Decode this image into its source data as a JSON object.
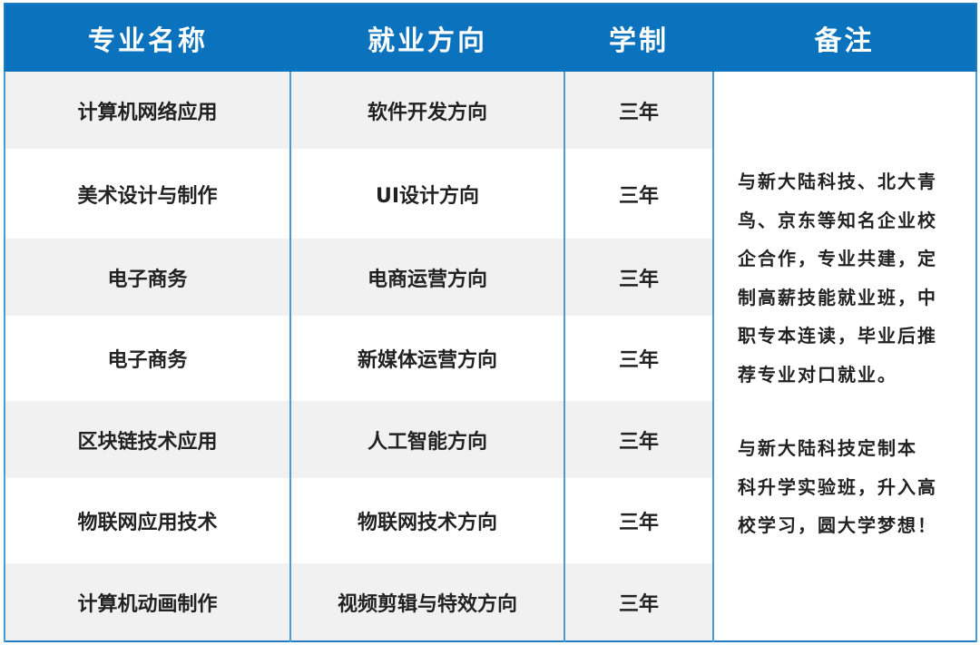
{
  "header": {
    "major": "专业名称",
    "direction": "就业方向",
    "duration": "学制",
    "remark": "备注"
  },
  "rows": [
    {
      "major": "计算机网络应用",
      "direction": "软件开发方向",
      "duration": "三年"
    },
    {
      "major": "美术设计与制作",
      "direction": "UI设计方向",
      "duration": "三年"
    },
    {
      "major": "电子商务",
      "direction": "电商运营方向",
      "duration": "三年"
    },
    {
      "major": "电子商务",
      "direction": "新媒体运营方向",
      "duration": "三年"
    },
    {
      "major": "区块链技术应用",
      "direction": "人工智能方向",
      "duration": "三年"
    },
    {
      "major": "物联网应用技术",
      "direction": "物联网技术方向",
      "duration": "三年"
    },
    {
      "major": "计算机动画制作",
      "direction": "视频剪辑与特效方向",
      "duration": "三年"
    }
  ],
  "remark": {
    "paragraph1": [
      "与新大陆科技、北大青",
      "鸟、京东等知名企业校",
      "企合作，专业共建，定",
      "制高薪技能就业班，中",
      "职专本连读，毕业后推",
      "荐专业对口就业。"
    ],
    "paragraph2": [
      "与新大陆科技定制本",
      "科升学实验班，升入高",
      "校学习，圆大学梦想！"
    ]
  },
  "colors": {
    "header": "#0b72bd",
    "border": "#4a9ad6",
    "stripe": "#f1f1f1"
  }
}
